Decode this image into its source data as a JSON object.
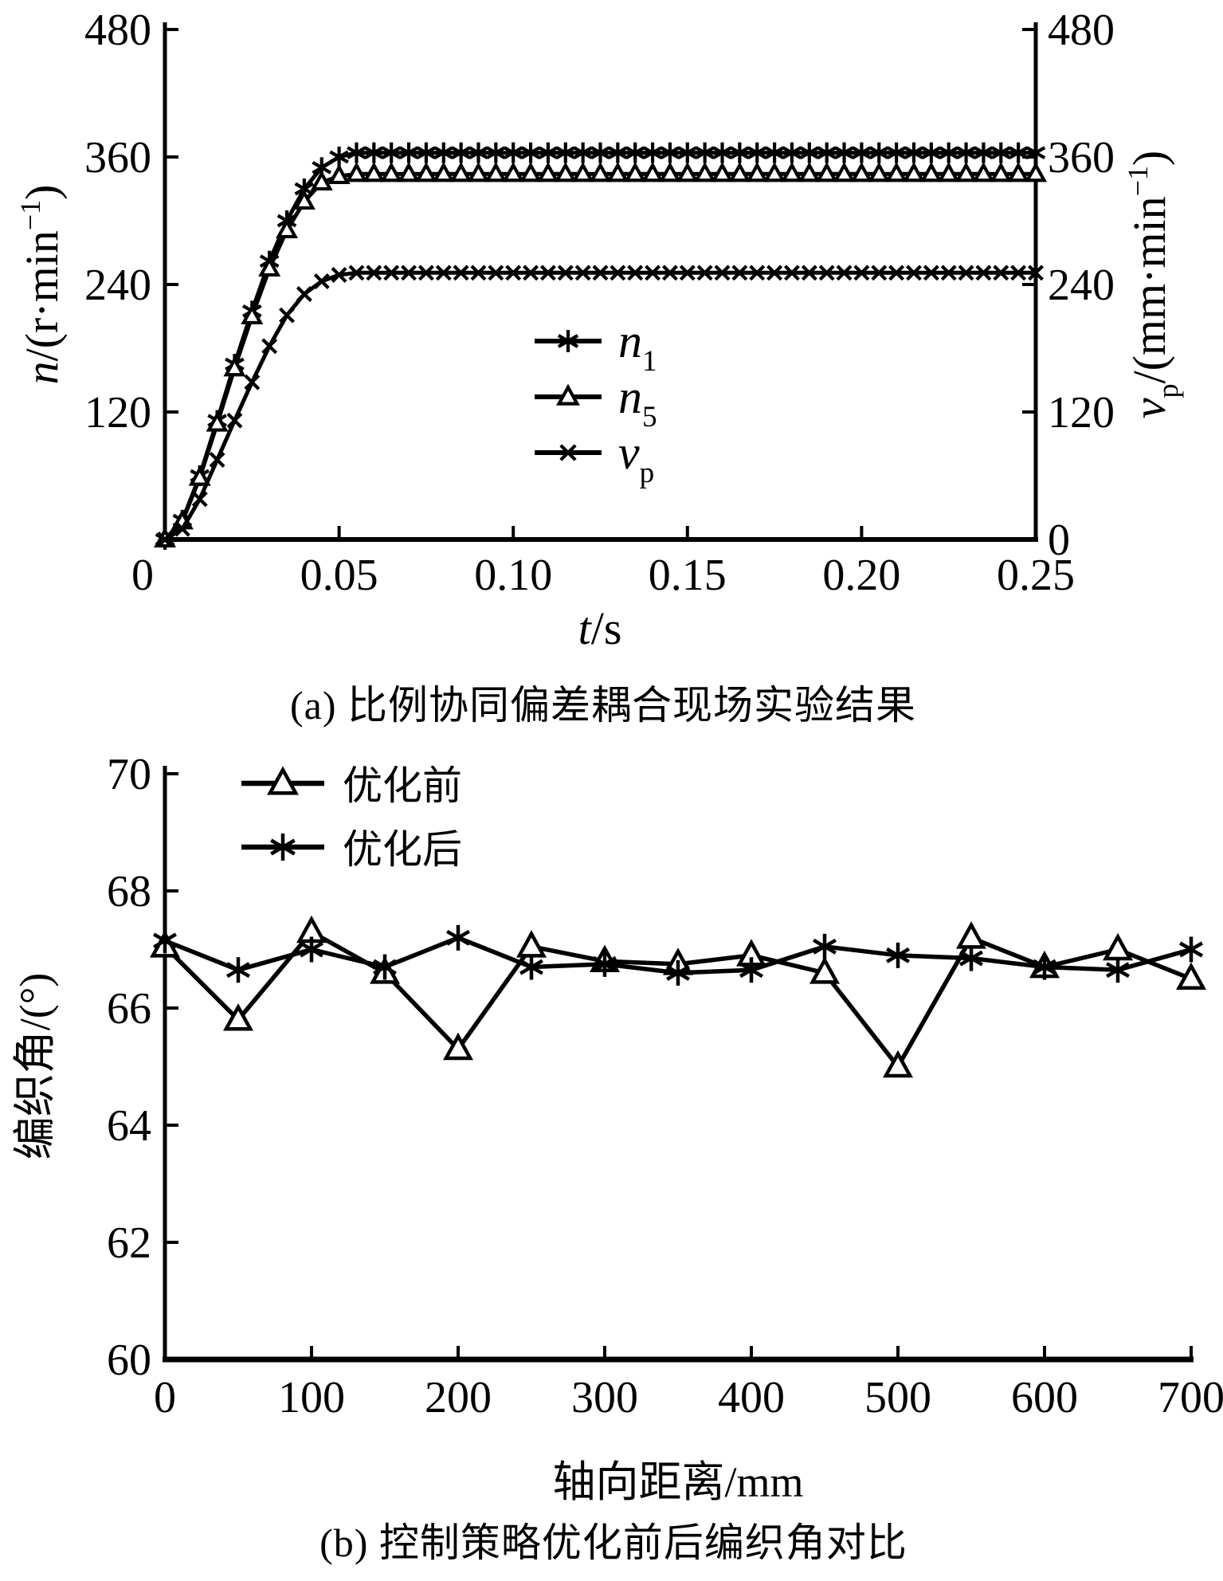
{
  "figure": {
    "background": "#ffffff",
    "ink": "#000000"
  },
  "chart_data": [
    {
      "id": "a",
      "type": "line",
      "caption": "(a) 比例协同偏差耦合现场实验结果",
      "xlabel_parts": [
        {
          "t": "t",
          "i": true
        },
        {
          "t": "/s"
        }
      ],
      "ylabel_left_parts": [
        {
          "t": "n",
          "i": true
        },
        {
          "t": "/(r·min"
        },
        {
          "t": "−1",
          "sup": true
        },
        {
          "t": ")"
        }
      ],
      "ylabel_right_parts": [
        {
          "t": "v",
          "i": true
        },
        {
          "t": "p",
          "sub": true
        },
        {
          "t": "/(mm·min"
        },
        {
          "t": "−1",
          "sup": true
        },
        {
          "t": ")"
        }
      ],
      "xlim": [
        0,
        0.25
      ],
      "ylim": [
        0,
        480
      ],
      "xticks": [
        0.05,
        0.1,
        0.15,
        0.2
      ],
      "xtick_labels": [
        "0.05",
        "0.10",
        "0.15",
        "0.20"
      ],
      "corner_label": "0",
      "x_end_label": "0.25",
      "yticks": [
        120,
        240,
        360,
        480
      ],
      "ytick_labels": [
        "120",
        "240",
        "360",
        "480"
      ],
      "right_yticks": [
        0,
        120,
        240,
        360,
        480
      ],
      "right_ytick_labels": [
        "0",
        "120",
        "240",
        "360",
        "480"
      ],
      "legend_position": "center",
      "series": [
        {
          "name": "n1",
          "marker": "asterisk",
          "legend_parts": [
            {
              "t": "n",
              "i": true
            },
            {
              "t": "1",
              "sub": true
            }
          ],
          "t": [
            0,
            0.005,
            0.01,
            0.015,
            0.02,
            0.025,
            0.03,
            0.035,
            0.04,
            0.045,
            0.05,
            0.055,
            0.06,
            0.065,
            0.07,
            0.075,
            0.08,
            0.085,
            0.09,
            0.095,
            0.1,
            0.105,
            0.11,
            0.115,
            0.12,
            0.125,
            0.13,
            0.135,
            0.14,
            0.145,
            0.15,
            0.155,
            0.16,
            0.165,
            0.17,
            0.175,
            0.18,
            0.185,
            0.19,
            0.195,
            0.2,
            0.205,
            0.21,
            0.215,
            0.22,
            0.225,
            0.23,
            0.235,
            0.24,
            0.245,
            0.25
          ],
          "v": [
            0,
            18,
            60,
            112,
            165,
            215,
            262,
            300,
            330,
            350,
            360,
            364,
            364,
            364,
            364,
            364,
            364,
            364,
            364,
            364,
            364,
            364,
            364,
            364,
            364,
            364,
            364,
            364,
            364,
            364,
            364,
            364,
            364,
            364,
            364,
            364,
            364,
            364,
            364,
            364,
            364,
            364,
            364,
            364,
            364,
            364,
            364,
            364,
            364,
            364,
            364
          ]
        },
        {
          "name": "n5",
          "marker": "triangle",
          "legend_parts": [
            {
              "t": "n",
              "i": true
            },
            {
              "t": "5",
              "sub": true
            }
          ],
          "t": [
            0,
            0.005,
            0.01,
            0.015,
            0.02,
            0.025,
            0.03,
            0.035,
            0.04,
            0.045,
            0.05,
            0.055,
            0.06,
            0.065,
            0.07,
            0.075,
            0.08,
            0.085,
            0.09,
            0.095,
            0.1,
            0.105,
            0.11,
            0.115,
            0.12,
            0.125,
            0.13,
            0.135,
            0.14,
            0.145,
            0.15,
            0.155,
            0.16,
            0.165,
            0.17,
            0.175,
            0.18,
            0.185,
            0.19,
            0.195,
            0.2,
            0.205,
            0.21,
            0.215,
            0.22,
            0.225,
            0.23,
            0.235,
            0.24,
            0.245,
            0.25
          ],
          "v": [
            0,
            17,
            58,
            109,
            161,
            210,
            255,
            291,
            318,
            336,
            342,
            344,
            344,
            344,
            344,
            344,
            344,
            344,
            344,
            344,
            344,
            344,
            344,
            344,
            344,
            344,
            344,
            344,
            344,
            344,
            344,
            344,
            344,
            344,
            344,
            344,
            344,
            344,
            344,
            344,
            344,
            344,
            344,
            344,
            344,
            344,
            344,
            344,
            344,
            344,
            344
          ]
        },
        {
          "name": "vp",
          "marker": "cross",
          "legend_parts": [
            {
              "t": "v",
              "i": true
            },
            {
              "t": "p",
              "sub": true
            }
          ],
          "t": [
            0,
            0.005,
            0.01,
            0.015,
            0.02,
            0.025,
            0.03,
            0.035,
            0.04,
            0.045,
            0.05,
            0.055,
            0.06,
            0.065,
            0.07,
            0.075,
            0.08,
            0.085,
            0.09,
            0.095,
            0.1,
            0.105,
            0.11,
            0.115,
            0.12,
            0.125,
            0.13,
            0.135,
            0.14,
            0.145,
            0.15,
            0.155,
            0.16,
            0.165,
            0.17,
            0.175,
            0.18,
            0.185,
            0.19,
            0.195,
            0.2,
            0.205,
            0.21,
            0.215,
            0.22,
            0.225,
            0.23,
            0.235,
            0.24,
            0.245,
            0.25
          ],
          "v": [
            0,
            10,
            38,
            75,
            112,
            148,
            182,
            211,
            231,
            243,
            249,
            251,
            251,
            251,
            251,
            251,
            251,
            251,
            251,
            251,
            251,
            251,
            251,
            251,
            251,
            251,
            251,
            251,
            251,
            251,
            251,
            251,
            251,
            251,
            251,
            251,
            251,
            251,
            251,
            251,
            251,
            251,
            251,
            251,
            251,
            251,
            251,
            251,
            251,
            251,
            251
          ]
        }
      ]
    },
    {
      "id": "b",
      "type": "line",
      "caption": "(b) 控制策略优化前后编织角对比",
      "xlabel_parts": [
        {
          "t": "轴向距离/mm"
        }
      ],
      "ylabel_left_parts": [
        {
          "t": "编织角/(°)"
        }
      ],
      "xlim": [
        0,
        700
      ],
      "ylim": [
        60,
        70
      ],
      "xticks": [
        100,
        200,
        300,
        400,
        500,
        600,
        700
      ],
      "xtick_labels": [
        "100",
        "200",
        "300",
        "400",
        "500",
        "600",
        "700"
      ],
      "corner_label": "0",
      "yticks": [
        60,
        62,
        64,
        66,
        68,
        70
      ],
      "ytick_labels": [
        "60",
        "62",
        "64",
        "66",
        "68",
        "70"
      ],
      "legend_position": "top-left",
      "series": [
        {
          "name": "before-optimization",
          "marker": "triangle",
          "legend_parts": [
            {
              "t": "优化前"
            }
          ],
          "t": [
            0,
            50,
            100,
            150,
            200,
            250,
            300,
            350,
            400,
            450,
            500,
            550,
            600,
            650,
            700
          ],
          "v": [
            67.05,
            65.8,
            67.3,
            66.6,
            65.3,
            67.05,
            66.8,
            66.75,
            66.9,
            66.6,
            65.0,
            67.2,
            66.7,
            67.0,
            66.5
          ]
        },
        {
          "name": "after-optimization",
          "marker": "asterisk",
          "legend_parts": [
            {
              "t": "优化后"
            }
          ],
          "t": [
            0,
            50,
            100,
            150,
            200,
            250,
            300,
            350,
            400,
            450,
            500,
            550,
            600,
            650,
            700
          ],
          "v": [
            67.15,
            66.65,
            67.0,
            66.7,
            67.2,
            66.7,
            66.75,
            66.6,
            66.65,
            67.05,
            66.9,
            66.85,
            66.7,
            66.65,
            67.0
          ]
        }
      ]
    }
  ]
}
